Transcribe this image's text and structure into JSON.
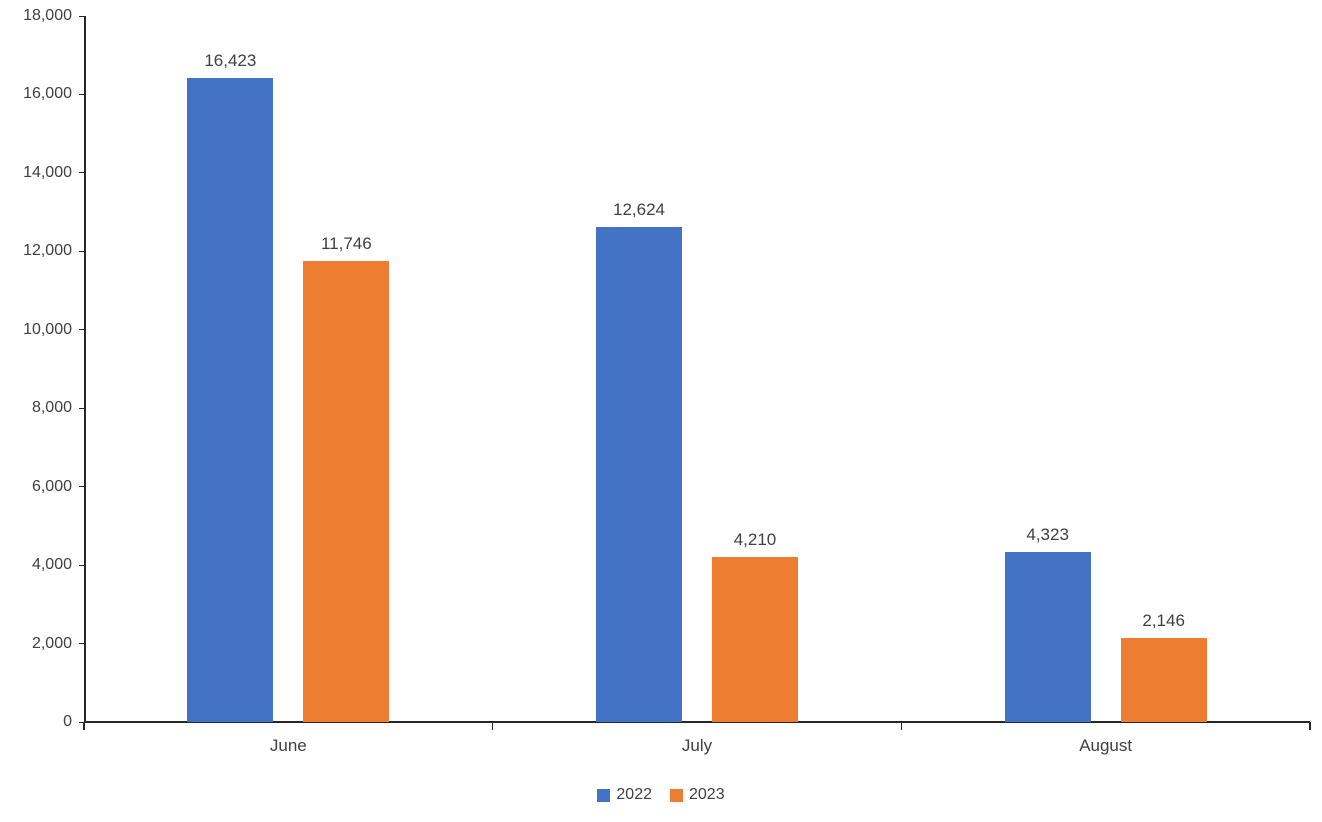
{
  "chart_data": {
    "type": "bar",
    "title": "",
    "xlabel": "",
    "ylabel": "",
    "categories": [
      "June",
      "July",
      "August"
    ],
    "series": [
      {
        "name": "2022",
        "color": "#4472C4",
        "values": [
          16423,
          12624,
          4323
        ]
      },
      {
        "name": "2023",
        "color": "#ED7D31",
        "values": [
          11746,
          4210,
          2146
        ]
      }
    ],
    "data_labels": [
      [
        "16,423",
        "12,624",
        "4,323"
      ],
      [
        "11,746",
        "4,210",
        "2,146"
      ]
    ],
    "ylim": [
      0,
      18000
    ],
    "ytick_step": 2000,
    "ytick_labels": [
      "0",
      "2,000",
      "4,000",
      "6,000",
      "8,000",
      "10,000",
      "12,000",
      "14,000",
      "16,000",
      "18,000"
    ],
    "grid": false,
    "legend_position": "bottom",
    "axis_color": "#262626",
    "text_color": "#404040",
    "background_color": "#FFFFFF"
  }
}
